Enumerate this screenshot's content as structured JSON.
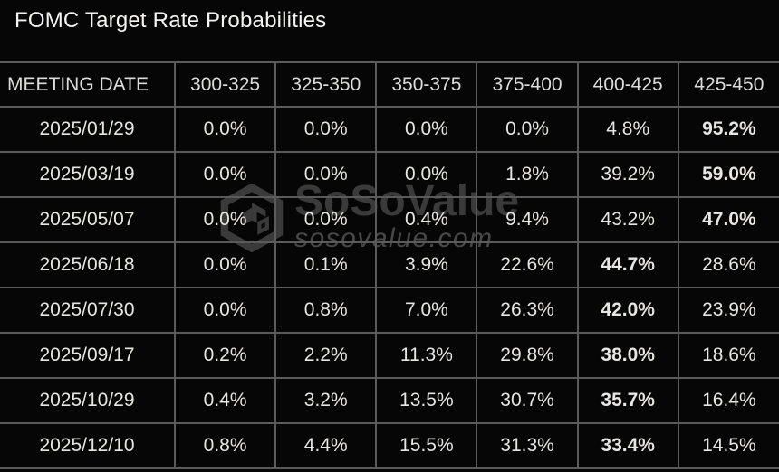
{
  "title": "FOMC Target Rate Probabilities",
  "watermark": {
    "brand": "SoSoValue",
    "domain": "sosovalue.com"
  },
  "colors": {
    "background": "#060606",
    "grid_border": "#5a5a5a",
    "text": "#e8e6e2",
    "highlight": "#e7583a",
    "watermark": "#3a3a3a"
  },
  "chart_data": {
    "type": "table",
    "title": "FOMC Target Rate Probabilities",
    "columns": [
      "MEETING DATE",
      "300-325",
      "325-350",
      "350-375",
      "375-400",
      "400-425",
      "425-450"
    ],
    "rows": [
      {
        "date": "2025/01/29",
        "values": [
          "0.0%",
          "0.0%",
          "0.0%",
          "0.0%",
          "4.8%",
          "95.2%"
        ],
        "highlight_index": 5
      },
      {
        "date": "2025/03/19",
        "values": [
          "0.0%",
          "0.0%",
          "0.0%",
          "1.8%",
          "39.2%",
          "59.0%"
        ],
        "highlight_index": 5
      },
      {
        "date": "2025/05/07",
        "values": [
          "0.0%",
          "0.0%",
          "0.4%",
          "9.4%",
          "43.2%",
          "47.0%"
        ],
        "highlight_index": 5
      },
      {
        "date": "2025/06/18",
        "values": [
          "0.0%",
          "0.1%",
          "3.9%",
          "22.6%",
          "44.7%",
          "28.6%"
        ],
        "highlight_index": 4
      },
      {
        "date": "2025/07/30",
        "values": [
          "0.0%",
          "0.8%",
          "7.0%",
          "26.3%",
          "42.0%",
          "23.9%"
        ],
        "highlight_index": 4
      },
      {
        "date": "2025/09/17",
        "values": [
          "0.2%",
          "2.2%",
          "11.3%",
          "29.8%",
          "38.0%",
          "18.6%"
        ],
        "highlight_index": 4
      },
      {
        "date": "2025/10/29",
        "values": [
          "0.4%",
          "3.2%",
          "13.5%",
          "30.7%",
          "35.7%",
          "16.4%"
        ],
        "highlight_index": 4
      },
      {
        "date": "2025/12/10",
        "values": [
          "0.8%",
          "4.4%",
          "15.5%",
          "31.3%",
          "33.4%",
          "14.5%"
        ],
        "highlight_index": 4
      }
    ]
  }
}
